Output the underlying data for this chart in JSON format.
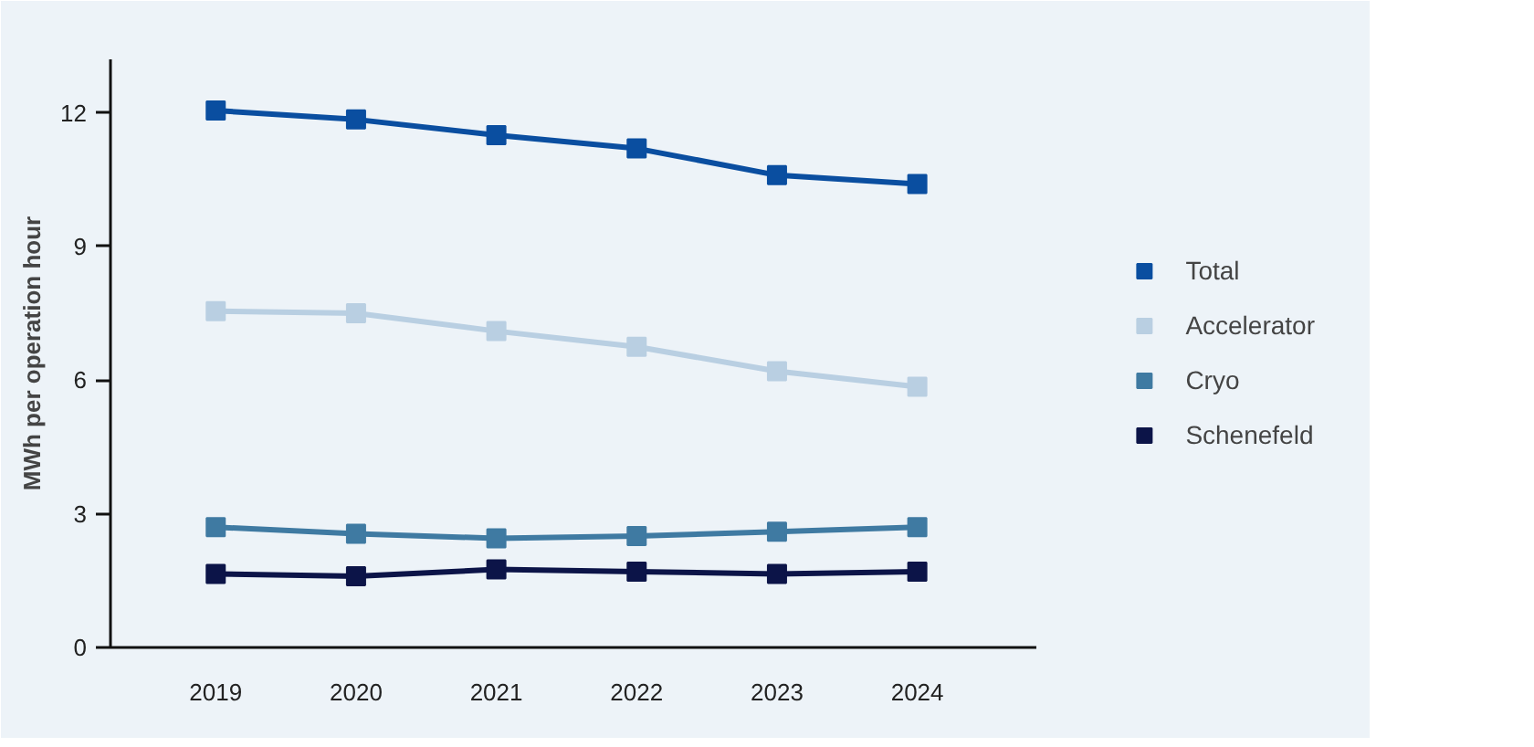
{
  "chart_data": {
    "type": "line",
    "ylabel": "MWh per operation hour",
    "categories": [
      "2019",
      "2020",
      "2021",
      "2022",
      "2023",
      "2024"
    ],
    "series": [
      {
        "name": "Total",
        "color": "#0a4ea0",
        "values": [
          12.05,
          11.85,
          11.5,
          11.2,
          10.6,
          10.4
        ]
      },
      {
        "name": "Accelerator",
        "color": "#b9cfe2",
        "values": [
          7.55,
          7.5,
          7.1,
          6.75,
          6.2,
          5.85
        ]
      },
      {
        "name": "Cryo",
        "color": "#3f7aa2",
        "values": [
          2.7,
          2.55,
          2.45,
          2.5,
          2.6,
          2.7
        ]
      },
      {
        "name": "Schenefeld",
        "color": "#0c1448",
        "values": [
          1.65,
          1.6,
          1.75,
          1.7,
          1.65,
          1.7
        ]
      }
    ],
    "ylim": [
      0,
      13.2
    ],
    "yticks": [
      0,
      3,
      6,
      9,
      12
    ],
    "grid": false,
    "legend": "right",
    "marker": "square",
    "line_style": "solid"
  }
}
